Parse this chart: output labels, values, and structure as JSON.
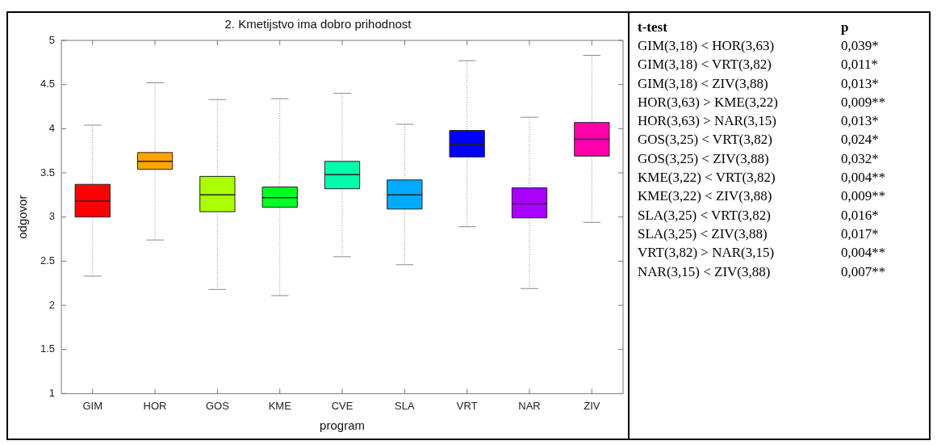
{
  "chart_data": {
    "type": "box",
    "title": "2. Kmetijstvo ima dobro prihodnost",
    "xlabel": "program",
    "ylabel": "odgovor",
    "categories": [
      "GIM",
      "HOR",
      "GOS",
      "KME",
      "CVE",
      "SLA",
      "VRT",
      "NAR",
      "ZIV"
    ],
    "colors": [
      "#ff0000",
      "#ffa500",
      "#aaff00",
      "#00ff22",
      "#00ffaa",
      "#00aaff",
      "#0000ff",
      "#aa00ff",
      "#ff00aa"
    ],
    "boxes": [
      {
        "low": 2.33,
        "q1": 3.0,
        "median": 3.18,
        "q3": 3.37,
        "high": 4.04
      },
      {
        "low": 2.74,
        "q1": 3.54,
        "median": 3.63,
        "q3": 3.73,
        "high": 4.52
      },
      {
        "low": 2.18,
        "q1": 3.06,
        "median": 3.25,
        "q3": 3.46,
        "high": 4.33
      },
      {
        "low": 2.11,
        "q1": 3.11,
        "median": 3.22,
        "q3": 3.34,
        "high": 4.34
      },
      {
        "low": 2.55,
        "q1": 3.32,
        "median": 3.48,
        "q3": 3.63,
        "high": 4.4
      },
      {
        "low": 2.46,
        "q1": 3.09,
        "median": 3.25,
        "q3": 3.42,
        "high": 4.05
      },
      {
        "low": 2.89,
        "q1": 3.68,
        "median": 3.82,
        "q3": 3.98,
        "high": 4.77
      },
      {
        "low": 2.19,
        "q1": 2.99,
        "median": 3.15,
        "q3": 3.33,
        "high": 4.13
      },
      {
        "low": 2.94,
        "q1": 3.69,
        "median": 3.88,
        "q3": 4.07,
        "high": 4.83
      }
    ],
    "ylim": [
      1,
      5
    ],
    "yticks": [
      1,
      1.5,
      2,
      2.5,
      3,
      3.5,
      4,
      4.5,
      5
    ],
    "grid": false,
    "legend": false,
    "annotations": [
      "t-test",
      "p",
      "GIM(3,18) < HOR(3,63)",
      "0,039*",
      "GIM(3,18) < VRT(3,82)",
      "0,011*",
      "GIM(3,18) < ZIV(3,88)",
      "0,013*",
      "HOR(3,63) > KME(3,22)",
      "0,009**",
      "HOR(3,63) > NAR(3,15)",
      "0,013*",
      "GOS(3,25) < VRT(3,82)",
      "0,024*",
      "GOS(3,25) < ZIV(3,88)",
      "0,032*",
      "KME(3,22) < VRT(3,82)",
      "0,004**",
      "KME(3,22) < ZIV(3,88)",
      "0,009**",
      "SLA(3,25) < VRT(3,82)",
      "0,016*",
      "SLA(3,25) < ZIV(3,88)",
      "0,017*",
      "VRT(3,82) > NAR(3,15)",
      "0,004**",
      "NAR(3,15) < ZIV(3,88)",
      "0,007**"
    ]
  }
}
